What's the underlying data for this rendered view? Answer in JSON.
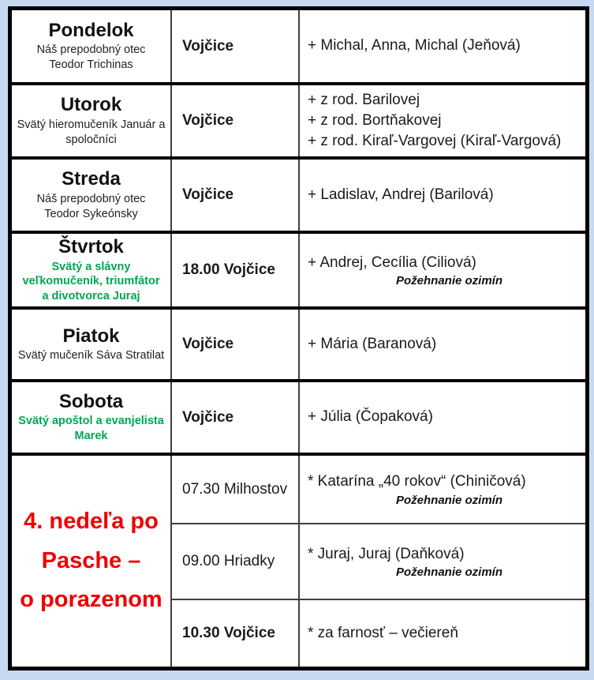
{
  "table": {
    "rows": [
      {
        "day": "Pondelok",
        "feast": "Náš prepodobný otec\nTeodor Trichinas",
        "place": "Vojčice",
        "intention": "+ Michal, Anna, Michal (Jeňová)",
        "note": ""
      },
      {
        "day": "Utorok",
        "feast": "Svätý hieromučeník Január a\nspoločníci",
        "place": "Vojčice",
        "intention": "+ z rod. Barilovej\n+ z rod. Bortňakovej\n+ z rod. Kiraľ-Vargovej (Kiraľ-Vargová)",
        "note": ""
      },
      {
        "day": "Streda",
        "feast": "Náš prepodobný otec\nTeodor Sykeónsky",
        "place": "Vojčice",
        "intention": "+ Ladislav, Andrej (Barilová)",
        "note": ""
      },
      {
        "day": "Štvrtok",
        "feast": "Svätý a slávny\nveľkomučeník, triumfátor\na divotvorca Juraj",
        "place": "18.00 Vojčice",
        "intention": "+ Andrej, Cecília (Ciliová)",
        "note": "Požehnanie ozimín"
      },
      {
        "day": "Piatok",
        "feast": "Svätý mučeník Sáva Stratilat",
        "place": "Vojčice",
        "intention": "+ Mária (Baranová)",
        "note": ""
      },
      {
        "day": "Sobota",
        "feast": "Svätý apoštol a evanjelista\nMarek",
        "place": "Vojčice",
        "intention": "+ Júlia (Čopaková)",
        "note": ""
      }
    ],
    "sunday": {
      "title": "4. nedeľa po\nPasche –\no porazenom",
      "services": [
        {
          "place": "07.30 Milhostov",
          "intention": "* Katarína „40 rokov“ (Chiničová)",
          "note": "Požehnanie ozimín"
        },
        {
          "place": "09.00 Hriadky",
          "intention": "* Juraj, Juraj (Daňková)",
          "note": "Požehnanie ozimín"
        },
        {
          "place": "10.30 Vojčice",
          "intention": "* za farnosť – večiereň",
          "note": ""
        }
      ]
    },
    "colors": {
      "page_bg": "#c7d9f1",
      "frame": "#000000",
      "grid_line": "#3f3f3f",
      "feast_green": "#00a651",
      "sunday_red": "#ee0000"
    }
  }
}
